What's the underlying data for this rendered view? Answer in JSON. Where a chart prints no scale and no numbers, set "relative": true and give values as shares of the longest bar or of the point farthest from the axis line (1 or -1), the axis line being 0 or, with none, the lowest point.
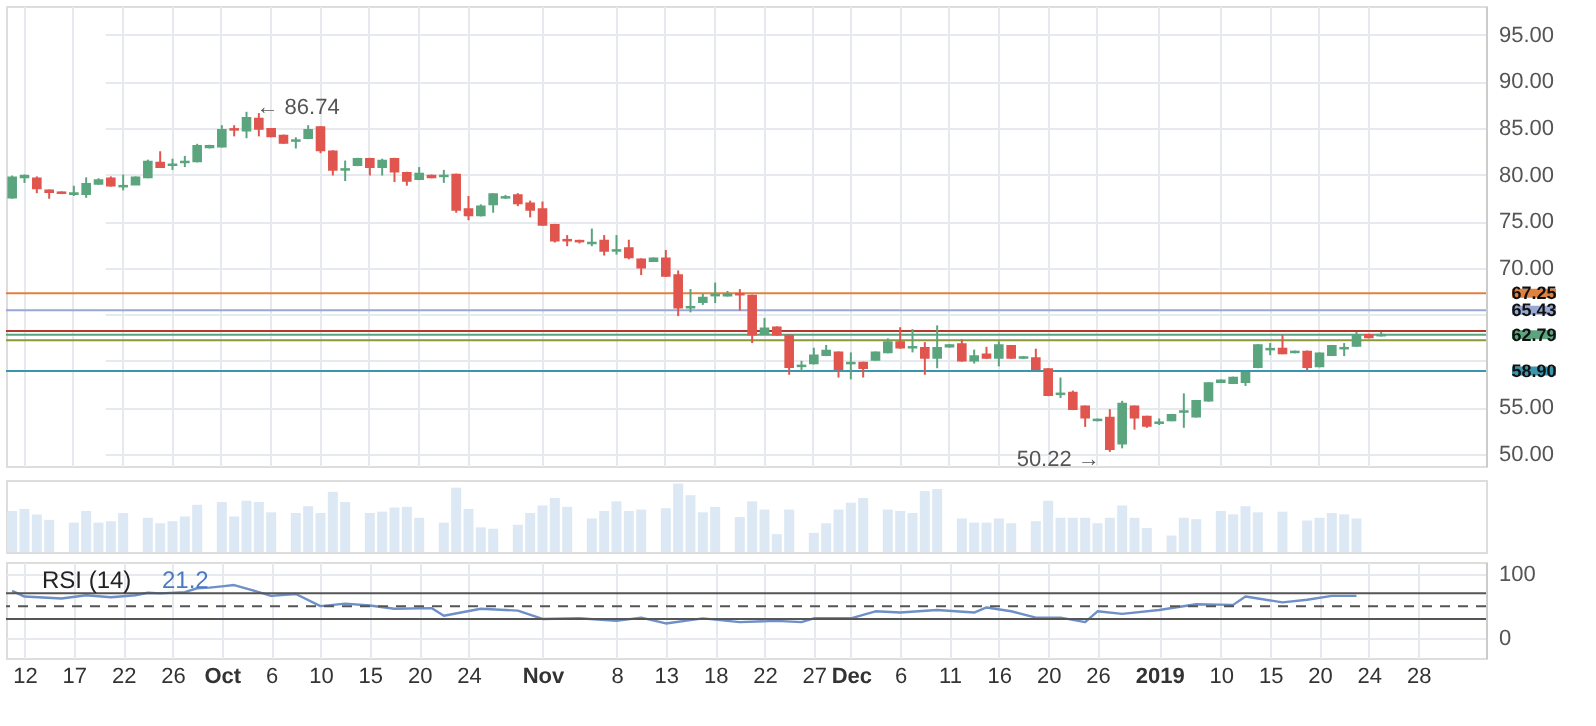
{
  "chart_data": [
    {
      "type": "candlestick",
      "categories": [
        null,
        null,
        null,
        null,
        null,
        null,
        null,
        null,
        null,
        null,
        null,
        null,
        null,
        null,
        null,
        null,
        null,
        null,
        null,
        null,
        null,
        null,
        null,
        null,
        null,
        null,
        null,
        null,
        null,
        null,
        null,
        null,
        null,
        null,
        null,
        null,
        null,
        null,
        null,
        null,
        null,
        null,
        null,
        null,
        null,
        null,
        null,
        null,
        null,
        null,
        null,
        null,
        null,
        null,
        null,
        null,
        null,
        null,
        null,
        null,
        null,
        null,
        null,
        null,
        null,
        null,
        null,
        null,
        null,
        null,
        null,
        null,
        null,
        null,
        null,
        null,
        null,
        null,
        null,
        null,
        null,
        null,
        null,
        null,
        null,
        null,
        null,
        null,
        null,
        null,
        null,
        null,
        null,
        null,
        null,
        null,
        null,
        null,
        null,
        null,
        null,
        null,
        null,
        null,
        null,
        null,
        null,
        null,
        null,
        null,
        null,
        null
      ],
      "ohlc": [
        [
          77.5,
          79.9,
          77.4,
          79.7
        ],
        [
          79.7,
          80.0,
          79.1,
          79.9
        ],
        [
          79.6,
          79.8,
          78.0,
          78.5
        ],
        [
          78.3,
          78.4,
          77.4,
          78.1
        ],
        [
          78.1,
          78.2,
          77.9,
          78.0
        ],
        [
          77.9,
          78.8,
          77.7,
          78.0
        ],
        [
          77.9,
          79.7,
          77.5,
          79.0
        ],
        [
          79.0,
          79.6,
          78.9,
          79.4
        ],
        [
          79.6,
          79.8,
          78.7,
          78.8
        ],
        [
          78.7,
          80.0,
          78.3,
          78.8
        ],
        [
          78.9,
          79.8,
          78.9,
          79.7
        ],
        [
          79.7,
          81.6,
          79.6,
          81.4
        ],
        [
          81.3,
          82.5,
          80.7,
          80.8
        ],
        [
          81.0,
          81.7,
          80.5,
          81.1
        ],
        [
          81.3,
          82.0,
          80.8,
          81.4
        ],
        [
          81.4,
          83.3,
          81.3,
          83.1
        ],
        [
          82.9,
          83.2,
          82.8,
          83.1
        ],
        [
          83.0,
          85.3,
          82.9,
          84.8
        ],
        [
          84.9,
          85.3,
          84.1,
          84.8
        ],
        [
          84.7,
          86.74,
          83.9,
          86.1
        ],
        [
          86.0,
          86.6,
          84.1,
          84.9
        ],
        [
          84.9,
          85.0,
          84.0,
          84.1
        ],
        [
          84.2,
          84.3,
          83.3,
          83.4
        ],
        [
          83.6,
          84.0,
          82.8,
          83.7
        ],
        [
          83.9,
          85.3,
          83.8,
          84.8
        ],
        [
          85.1,
          85.2,
          82.3,
          82.6
        ],
        [
          82.5,
          82.6,
          79.9,
          80.5
        ],
        [
          80.5,
          81.5,
          79.3,
          80.6
        ],
        [
          81.0,
          81.8,
          80.9,
          81.7
        ],
        [
          81.7,
          81.8,
          79.9,
          80.8
        ],
        [
          80.8,
          81.7,
          79.9,
          81.5
        ],
        [
          81.7,
          81.8,
          79.2,
          80.3
        ],
        [
          80.2,
          80.3,
          78.8,
          79.3
        ],
        [
          79.5,
          80.8,
          79.4,
          80.1
        ],
        [
          79.9,
          80.0,
          79.6,
          79.7
        ],
        [
          79.8,
          80.5,
          79.1,
          79.9
        ],
        [
          80.0,
          80.1,
          75.9,
          76.2
        ],
        [
          76.3,
          77.7,
          75.1,
          75.6
        ],
        [
          75.6,
          76.8,
          75.5,
          76.6
        ],
        [
          76.8,
          78.0,
          75.9,
          77.9
        ],
        [
          77.5,
          77.8,
          77.4,
          77.6
        ],
        [
          77.8,
          78.0,
          76.6,
          76.9
        ],
        [
          76.9,
          77.2,
          75.4,
          76.2
        ],
        [
          76.3,
          77.1,
          74.5,
          74.6
        ],
        [
          74.6,
          74.7,
          72.7,
          72.9
        ],
        [
          73.0,
          73.5,
          72.3,
          72.9
        ],
        [
          72.9,
          73.0,
          72.6,
          72.8
        ],
        [
          72.6,
          74.2,
          72.3,
          72.7
        ],
        [
          72.9,
          73.5,
          71.3,
          71.8
        ],
        [
          71.8,
          73.5,
          71.4,
          71.9
        ],
        [
          72.1,
          73.0,
          70.9,
          71.1
        ],
        [
          70.9,
          71.0,
          69.2,
          70.0
        ],
        [
          70.7,
          71.1,
          70.6,
          71.0
        ],
        [
          71.0,
          71.9,
          69.0,
          69.1
        ],
        [
          69.2,
          69.7,
          64.8,
          65.7
        ],
        [
          65.7,
          67.7,
          65.2,
          65.8
        ],
        [
          66.3,
          67.2,
          66.0,
          66.8
        ],
        [
          67.0,
          68.4,
          66.2,
          67.1
        ],
        [
          67.0,
          67.5,
          66.9,
          67.2
        ],
        [
          67.2,
          67.7,
          65.4,
          67.1
        ],
        [
          67.0,
          67.1,
          61.9,
          62.8
        ],
        [
          62.9,
          64.6,
          62.8,
          63.5
        ],
        [
          63.6,
          63.7,
          62.7,
          62.8
        ],
        [
          62.7,
          62.8,
          58.5,
          59.3
        ],
        [
          59.4,
          60.0,
          58.9,
          59.5
        ],
        [
          59.7,
          61.4,
          59.6,
          60.6
        ],
        [
          60.6,
          61.7,
          60.5,
          61.1
        ],
        [
          60.9,
          61.0,
          58.2,
          59.1
        ],
        [
          59.7,
          60.9,
          58.0,
          59.8
        ],
        [
          59.8,
          59.9,
          58.2,
          59.2
        ],
        [
          60.1,
          61.0,
          60.0,
          60.9
        ],
        [
          60.9,
          62.4,
          60.8,
          62.0
        ],
        [
          62.0,
          63.6,
          61.3,
          61.4
        ],
        [
          61.4,
          63.4,
          60.9,
          61.5
        ],
        [
          61.4,
          62.0,
          58.5,
          60.3
        ],
        [
          60.3,
          63.8,
          59.2,
          61.4
        ],
        [
          61.5,
          61.8,
          61.4,
          61.7
        ],
        [
          61.8,
          62.3,
          59.9,
          60.0
        ],
        [
          60.0,
          61.2,
          59.7,
          60.5
        ],
        [
          60.7,
          61.5,
          60.2,
          60.3
        ],
        [
          60.3,
          62.1,
          59.4,
          61.7
        ],
        [
          61.6,
          61.7,
          60.2,
          60.3
        ],
        [
          60.3,
          60.5,
          60.2,
          60.4
        ],
        [
          60.3,
          61.3,
          59.0,
          59.1
        ],
        [
          59.1,
          59.2,
          56.2,
          56.3
        ],
        [
          56.4,
          58.2,
          56.0,
          56.5
        ],
        [
          56.6,
          56.8,
          54.7,
          54.8
        ],
        [
          55.1,
          55.2,
          52.9,
          53.9
        ],
        [
          53.6,
          53.8,
          53.5,
          53.7
        ],
        [
          53.9,
          54.8,
          50.22,
          50.5
        ],
        [
          51.1,
          55.7,
          50.6,
          55.4
        ],
        [
          55.1,
          55.2,
          52.6,
          53.9
        ],
        [
          54.0,
          54.1,
          52.8,
          53.0
        ],
        [
          53.3,
          53.8,
          53.1,
          53.4
        ],
        [
          53.6,
          54.3,
          53.5,
          54.2
        ],
        [
          54.5,
          56.5,
          52.8,
          54.6
        ],
        [
          54.0,
          55.8,
          53.9,
          55.7
        ],
        [
          55.7,
          57.7,
          55.6,
          57.6
        ],
        [
          57.7,
          58.0,
          57.6,
          57.9
        ],
        [
          57.6,
          58.3,
          57.5,
          58.2
        ],
        [
          57.7,
          58.8,
          57.3,
          58.7
        ],
        [
          59.3,
          61.8,
          59.2,
          61.7
        ],
        [
          61.2,
          61.9,
          60.6,
          61.3
        ],
        [
          61.3,
          62.8,
          60.7,
          60.8
        ],
        [
          60.9,
          61.1,
          60.8,
          61.0
        ],
        [
          61.0,
          61.1,
          59.0,
          59.3
        ],
        [
          59.4,
          60.9,
          59.3,
          60.8
        ],
        [
          60.6,
          61.7,
          60.5,
          61.6
        ],
        [
          61.3,
          61.9,
          60.5,
          61.4
        ],
        [
          61.6,
          63.1,
          61.5,
          62.8
        ],
        [
          62.8,
          62.9,
          62.4,
          62.5
        ],
        [
          62.7,
          63.1,
          62.6,
          62.8
        ]
      ],
      "colors": [
        "#5aa57e",
        "#5aa57e",
        "#e0554d",
        "#e0554d",
        "#e0554d",
        "#5aa57e",
        "#5aa57e",
        "#5aa57e",
        "#e0554d",
        "#5aa57e",
        "#5aa57e",
        "#5aa57e",
        "#e0554d",
        "#5aa57e",
        "#5aa57e",
        "#5aa57e",
        "#5aa57e",
        "#5aa57e",
        "#e0554d",
        "#5aa57e",
        "#e0554d",
        "#e0554d",
        "#e0554d",
        "#5aa57e",
        "#5aa57e",
        "#e0554d",
        "#e0554d",
        "#5aa57e",
        "#5aa57e",
        "#e0554d",
        "#5aa57e",
        "#e0554d",
        "#e0554d",
        "#5aa57e",
        "#e0554d",
        "#5aa57e",
        "#e0554d",
        "#e0554d",
        "#5aa57e",
        "#5aa57e",
        "#5aa57e",
        "#e0554d",
        "#e0554d",
        "#e0554d",
        "#e0554d",
        "#e0554d",
        "#e0554d",
        "#5aa57e",
        "#e0554d",
        "#5aa57e",
        "#e0554d",
        "#e0554d",
        "#5aa57e",
        "#e0554d",
        "#e0554d",
        "#5aa57e",
        "#5aa57e",
        "#5aa57e",
        "#5aa57e",
        "#e0554d",
        "#e0554d",
        "#5aa57e",
        "#e0554d",
        "#e0554d",
        "#5aa57e",
        "#5aa57e",
        "#5aa57e",
        "#e0554d",
        "#5aa57e",
        "#e0554d",
        "#5aa57e",
        "#5aa57e",
        "#e0554d",
        "#5aa57e",
        "#e0554d",
        "#5aa57e",
        "#5aa57e",
        "#e0554d",
        "#5aa57e",
        "#e0554d",
        "#5aa57e",
        "#e0554d",
        "#5aa57e",
        "#e0554d",
        "#e0554d",
        "#5aa57e",
        "#e0554d",
        "#e0554d",
        "#5aa57e",
        "#e0554d",
        "#5aa57e",
        "#e0554d",
        "#e0554d",
        "#5aa57e",
        "#5aa57e",
        "#5aa57e",
        "#5aa57e",
        "#5aa57e",
        "#5aa57e",
        "#5aa57e",
        "#5aa57e",
        "#5aa57e",
        "#5aa57e",
        "#e0554d",
        "#5aa57e",
        "#e0554d",
        "#5aa57e",
        "#5aa57e",
        "#5aa57e",
        "#5aa57e",
        "#e0554d",
        "#5aa57e"
      ],
      "ylim": [
        48.7,
        98.1
      ],
      "yticks": [
        {
          "value": 50,
          "label": "50.00"
        },
        {
          "value": 55,
          "label": "55.00"
        },
        {
          "value": 60,
          "label": null
        },
        {
          "value": 65,
          "label": null
        },
        {
          "value": 70,
          "label": "70.00"
        },
        {
          "value": 75,
          "label": "75.00"
        },
        {
          "value": 80,
          "label": "80.00"
        },
        {
          "value": 85,
          "label": "85.00"
        },
        {
          "value": 90,
          "label": "90.00"
        },
        {
          "value": 95,
          "label": "95.00"
        }
      ],
      "grid": true,
      "tick_labels": "y",
      "ref_lines": [
        {
          "axis": "y",
          "value": 67.25,
          "label": "67.25",
          "color": "#e0823d"
        },
        {
          "axis": "y",
          "value": 65.43,
          "label": "65.43",
          "color": "#98a8d4"
        },
        {
          "axis": "y",
          "value": 63.2,
          "color": "#b03a2e"
        },
        {
          "axis": "y",
          "value": 62.79,
          "label": "62.79",
          "color": "#5aa57e"
        },
        {
          "axis": "y",
          "value": 62.2,
          "color": "#8a9a3a"
        },
        {
          "axis": "y",
          "value": 58.9,
          "label": "58.90",
          "color": "#3a95ae"
        }
      ],
      "annotations": [
        "← 86.74",
        "50.22 →"
      ]
    },
    {
      "type": "bar",
      "relative": true,
      "tick_labels": false,
      "color": "#dce8f3",
      "categories": [
        null,
        null,
        null,
        null,
        null,
        null,
        null,
        null,
        null,
        null,
        null,
        null,
        null,
        null,
        null,
        null,
        null,
        null,
        null,
        null,
        null,
        null,
        null,
        null,
        null,
        null,
        null,
        null,
        null,
        null,
        null,
        null,
        null,
        null,
        null,
        null,
        null,
        null,
        null,
        null,
        null,
        null,
        null,
        null,
        null,
        null,
        null,
        null,
        null,
        null,
        null,
        null,
        null,
        null,
        null,
        null,
        null,
        null,
        null,
        null,
        null,
        null,
        null,
        null,
        null,
        null,
        null,
        null,
        null,
        null,
        null,
        null,
        null,
        null,
        null,
        null,
        null,
        null,
        null,
        null,
        null,
        null,
        null,
        null,
        null,
        null,
        null,
        null,
        null,
        null,
        null,
        null,
        null,
        null,
        null,
        null,
        null,
        null,
        null,
        null,
        null,
        null,
        null,
        null,
        null,
        null,
        null,
        null,
        null,
        null,
        null,
        null
      ],
      "values": [
        0.6,
        0.63,
        0.55,
        0.47,
        null,
        0.43,
        0.6,
        0.43,
        0.45,
        0.57,
        null,
        0.5,
        0.42,
        0.45,
        0.52,
        0.69,
        null,
        0.73,
        0.52,
        0.75,
        0.73,
        0.58,
        null,
        0.57,
        0.67,
        0.57,
        0.88,
        0.73,
        null,
        0.57,
        0.59,
        0.65,
        0.66,
        0.5,
        null,
        0.43,
        0.94,
        0.63,
        0.36,
        0.34,
        null,
        0.4,
        0.57,
        0.68,
        0.79,
        0.66,
        null,
        0.49,
        0.6,
        0.74,
        0.6,
        0.62,
        null,
        0.64,
        1,
        0.83,
        0.58,
        0.66,
        null,
        0.51,
        0.74,
        0.62,
        0.26,
        0.62,
        null,
        0.28,
        0.42,
        0.62,
        0.72,
        0.79,
        null,
        0.62,
        0.6,
        0.57,
        0.89,
        0.92,
        null,
        0.49,
        0.43,
        0.43,
        0.49,
        0.42,
        null,
        0.45,
        0.75,
        0.5,
        0.5,
        0.5,
        0.42,
        0.5,
        0.68,
        0.5,
        0.35,
        null,
        0.24,
        0.5,
        0.48,
        null,
        0.6,
        0.55,
        0.67,
        0.58,
        null,
        0.59,
        null,
        0.46,
        0.5,
        0.57,
        0.55,
        0.49,
        null,
        null
      ]
    },
    {
      "type": "line",
      "categories": [
        null,
        "12",
        null,
        null,
        null,
        "17",
        null,
        null,
        null,
        "22",
        null,
        null,
        null,
        "26",
        null,
        null,
        null,
        "Oct",
        null,
        null,
        null,
        "6",
        null,
        null,
        null,
        "10",
        null,
        null,
        null,
        "15",
        null,
        null,
        null,
        "20",
        null,
        null,
        null,
        "24",
        null,
        null,
        null,
        null,
        null,
        "Nov",
        null,
        null,
        null,
        null,
        null,
        "8",
        null,
        null,
        null,
        "13",
        null,
        null,
        null,
        "18",
        null,
        null,
        null,
        "22",
        null,
        null,
        null,
        "27",
        null,
        null,
        "Dec",
        null,
        null,
        null,
        "6",
        null,
        null,
        null,
        "11",
        null,
        null,
        null,
        "16",
        null,
        null,
        null,
        "20",
        null,
        null,
        null,
        "26",
        null,
        null,
        null,
        null,
        "2019",
        null,
        null,
        null,
        null,
        "10",
        null,
        null,
        null,
        "15",
        null,
        null,
        null,
        "20",
        null,
        null,
        null,
        "24",
        null,
        null,
        null,
        "28",
        null,
        null,
        null,
        null,
        null
      ],
      "series": [
        {
          "color": "#6f8fc7",
          "values": [
            74,
            65,
            null,
            null,
            62,
            null,
            67,
            null,
            64,
            null,
            67,
            71,
            70,
            null,
            72,
            78,
            79,
            81,
            83,
            null,
            72,
            66,
            null,
            69,
            null,
            50,
            null,
            54,
            null,
            51,
            null,
            46,
            null,
            null,
            47,
            35,
            null,
            null,
            46,
            null,
            null,
            43,
            null,
            30,
            null,
            null,
            31,
            null,
            null,
            27,
            null,
            32,
            null,
            23,
            null,
            null,
            31,
            null,
            null,
            25,
            null,
            null,
            27,
            null,
            25,
            31,
            null,
            null,
            31,
            null,
            42,
            null,
            40,
            null,
            null,
            44,
            null,
            null,
            40,
            48,
            null,
            42,
            null,
            32,
            null,
            32,
            null,
            25,
            42,
            null,
            38,
            null,
            null,
            44,
            null,
            null,
            53,
            null,
            null,
            52,
            65,
            null,
            null,
            56,
            null,
            60,
            null,
            66,
            null,
            66,
            null,
            null,
            null,
            null,
            null,
            null,
            null,
            null,
            null,
            null
          ]
        }
      ],
      "ylim": [
        -31,
        119
      ],
      "yticks": [
        0,
        100
      ],
      "grid": true,
      "ref_lines": [
        {
          "axis": "y",
          "value": 70,
          "color": "#555555"
        },
        {
          "axis": "y",
          "value": 50,
          "color": "#555555",
          "line_style": "dashed"
        },
        {
          "axis": "y",
          "value": 30,
          "color": "#555555"
        }
      ],
      "annotations": [
        "RSI (14)",
        "21.2"
      ]
    }
  ]
}
